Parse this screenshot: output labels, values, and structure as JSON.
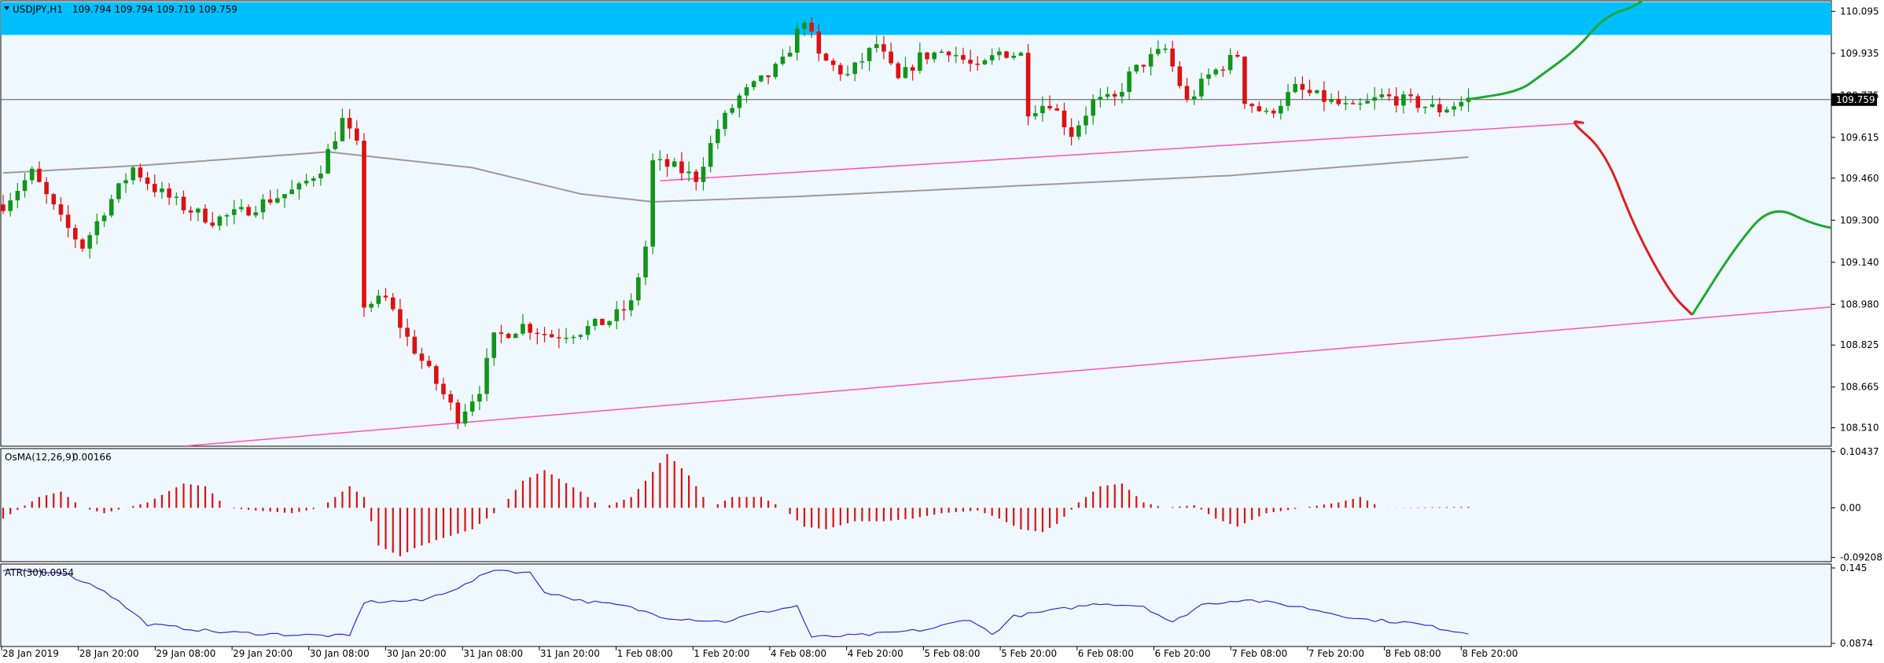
{
  "header": {
    "symbol_label": "USDJPY,H1",
    "ohlc": "109.794 109.794 109.719 109.759"
  },
  "colors": {
    "background": "#f0f8ff",
    "bull": "#109618",
    "bear": "#dd1111",
    "resistance_zone": "#00bfff",
    "trend": "#ff4fb8",
    "ma": "#9a9a9a",
    "atr": "#2b2bd6",
    "forecast_down": "#e31c1c",
    "forecast_up": "#20a830"
  },
  "chart_data": [
    {
      "type": "candlestick",
      "title": "USDJPY,H1",
      "ohlc_label": "109.794 109.794 109.719 109.759",
      "ylim": [
        108.44,
        110.135
      ],
      "y_ticks": [
        "110.095",
        "109.935",
        "109.775",
        "109.615",
        "109.460",
        "109.300",
        "109.140",
        "108.980",
        "108.825",
        "108.665",
        "108.510"
      ],
      "x_ticks": [
        "28 Jan 2019",
        "28 Jan 20:00",
        "29 Jan 08:00",
        "29 Jan 20:00",
        "30 Jan 08:00",
        "30 Jan 20:00",
        "31 Jan 08:00",
        "31 Jan 20:00",
        "1 Feb 08:00",
        "1 Feb 20:00",
        "4 Feb 08:00",
        "4 Feb 20:00",
        "5 Feb 08:00",
        "5 Feb 20:00",
        "6 Feb 08:00",
        "6 Feb 20:00",
        "7 Feb 08:00",
        "7 Feb 20:00",
        "8 Feb 08:00",
        "8 Feb 20:00"
      ],
      "current_price": "109.759",
      "resistance_zone": [
        110.005,
        110.13
      ],
      "close_anchors": [
        [
          0,
          109.36
        ],
        [
          4,
          109.48
        ],
        [
          8,
          109.3
        ],
        [
          11,
          109.2
        ],
        [
          14,
          109.34
        ],
        [
          18,
          109.5
        ],
        [
          21,
          109.42
        ],
        [
          25,
          109.35
        ],
        [
          29,
          109.3
        ],
        [
          33,
          109.33
        ],
        [
          37,
          109.38
        ],
        [
          41,
          109.42
        ],
        [
          44,
          109.5
        ],
        [
          47,
          109.68
        ],
        [
          49,
          109.58
        ],
        [
          50,
          108.98
        ],
        [
          53,
          109.0
        ],
        [
          56,
          108.85
        ],
        [
          60,
          108.68
        ],
        [
          63,
          108.55
        ],
        [
          66,
          108.66
        ],
        [
          68,
          108.85
        ],
        [
          72,
          108.9
        ],
        [
          76,
          108.86
        ],
        [
          80,
          108.88
        ],
        [
          84,
          108.92
        ],
        [
          87,
          108.98
        ],
        [
          89,
          109.2
        ],
        [
          90,
          109.52
        ],
        [
          93,
          109.5
        ],
        [
          96,
          109.46
        ],
        [
          99,
          109.65
        ],
        [
          102,
          109.77
        ],
        [
          106,
          109.85
        ],
        [
          108,
          109.9
        ],
        [
          111,
          110.07
        ],
        [
          113,
          109.92
        ],
        [
          117,
          109.85
        ],
        [
          121,
          109.97
        ],
        [
          124,
          109.83
        ],
        [
          127,
          109.92
        ],
        [
          131,
          109.95
        ],
        [
          135,
          109.87
        ],
        [
          138,
          109.94
        ],
        [
          141,
          109.93
        ],
        [
          142,
          109.72
        ],
        [
          145,
          109.75
        ],
        [
          148,
          109.63
        ],
        [
          151,
          109.75
        ],
        [
          154,
          109.76
        ],
        [
          156,
          109.85
        ],
        [
          158,
          109.9
        ],
        [
          161,
          109.95
        ],
        [
          164,
          109.75
        ],
        [
          167,
          109.85
        ],
        [
          171,
          109.93
        ],
        [
          172,
          109.76
        ],
        [
          175,
          109.7
        ],
        [
          179,
          109.8
        ],
        [
          183,
          109.76
        ],
        [
          187,
          109.72
        ],
        [
          191,
          109.77
        ],
        [
          195,
          109.75
        ],
        [
          199,
          109.72
        ],
        [
          203,
          109.76
        ]
      ],
      "moving_average": [
        [
          0,
          109.48
        ],
        [
          20,
          109.51
        ],
        [
          45,
          109.56
        ],
        [
          65,
          109.5
        ],
        [
          80,
          109.4
        ],
        [
          90,
          109.37
        ],
        [
          110,
          109.39
        ],
        [
          140,
          109.43
        ],
        [
          170,
          109.47
        ],
        [
          203,
          109.54
        ]
      ],
      "trendline_lower": [
        [
          25,
          108.44
        ],
        [
          262,
          108.99
        ]
      ],
      "trendline_upper": [
        [
          91,
          109.45
        ],
        [
          219,
          109.67
        ]
      ],
      "forecast_red": [
        [
          219,
          109.67
        ],
        [
          217,
          109.68
        ],
        [
          222,
          109.56
        ],
        [
          226,
          109.27
        ],
        [
          231,
          109.02
        ],
        [
          234,
          108.94
        ]
      ],
      "forecast_green": [
        [
          203,
          109.76
        ],
        [
          210,
          109.79
        ],
        [
          213,
          109.85
        ],
        [
          218,
          109.95
        ],
        [
          222,
          110.08
        ],
        [
          227,
          110.12
        ],
        [
          231,
          110.25
        ]
      ],
      "forecast_green_long": [
        [
          234,
          108.94
        ],
        [
          240,
          109.2
        ],
        [
          245,
          109.36
        ],
        [
          251,
          109.28
        ],
        [
          256,
          109.26
        ],
        [
          261,
          109.5
        ],
        [
          264,
          109.64
        ],
        [
          268,
          109.75
        ],
        [
          271,
          110.0
        ],
        [
          272,
          110.14
        ]
      ]
    },
    {
      "type": "bar",
      "title": "OsMA(12,26,9)",
      "value_label": "0.00166",
      "ylim": [
        -0.1,
        0.11
      ],
      "y_ticks": [
        "0.10437",
        "0.00",
        "-0.09208"
      ],
      "anchors": [
        [
          0,
          -0.02
        ],
        [
          5,
          0.02
        ],
        [
          8,
          0.03
        ],
        [
          11,
          0.0
        ],
        [
          14,
          -0.01
        ],
        [
          17,
          0.0
        ],
        [
          20,
          0.01
        ],
        [
          25,
          0.045
        ],
        [
          28,
          0.04
        ],
        [
          31,
          0.0
        ],
        [
          35,
          -0.005
        ],
        [
          40,
          -0.01
        ],
        [
          44,
          0.0
        ],
        [
          48,
          0.04
        ],
        [
          50,
          0.02
        ],
        [
          52,
          -0.07
        ],
        [
          55,
          -0.09
        ],
        [
          57,
          -0.075
        ],
        [
          60,
          -0.06
        ],
        [
          65,
          -0.04
        ],
        [
          69,
          0.0
        ],
        [
          72,
          0.05
        ],
        [
          75,
          0.07
        ],
        [
          80,
          0.03
        ],
        [
          83,
          0.0
        ],
        [
          87,
          0.02
        ],
        [
          89,
          0.05
        ],
        [
          92,
          0.1
        ],
        [
          95,
          0.06
        ],
        [
          98,
          0.0
        ],
        [
          101,
          0.02
        ],
        [
          105,
          0.02
        ],
        [
          108,
          0.0
        ],
        [
          111,
          -0.035
        ],
        [
          114,
          -0.04
        ],
        [
          118,
          -0.025
        ],
        [
          122,
          -0.025
        ],
        [
          126,
          -0.02
        ],
        [
          130,
          -0.01
        ],
        [
          135,
          -0.005
        ],
        [
          138,
          -0.02
        ],
        [
          141,
          -0.04
        ],
        [
          144,
          -0.045
        ],
        [
          146,
          -0.03
        ],
        [
          149,
          0.01
        ],
        [
          152,
          0.04
        ],
        [
          155,
          0.045
        ],
        [
          158,
          0.01
        ],
        [
          161,
          0.0
        ],
        [
          165,
          0.005
        ],
        [
          168,
          -0.02
        ],
        [
          171,
          -0.035
        ],
        [
          175,
          -0.01
        ],
        [
          180,
          0.0
        ],
        [
          185,
          0.01
        ],
        [
          188,
          0.02
        ],
        [
          191,
          0.0
        ],
        [
          203,
          0.0017
        ]
      ]
    },
    {
      "type": "line",
      "title": "ATR(30)",
      "value_label": "0.0954",
      "ylim": [
        0.085,
        0.148
      ],
      "y_ticks": [
        "0.145",
        "0.0874"
      ],
      "anchors": [
        [
          0,
          0.143
        ],
        [
          8,
          0.142
        ],
        [
          14,
          0.128
        ],
        [
          20,
          0.102
        ],
        [
          30,
          0.096
        ],
        [
          40,
          0.094
        ],
        [
          48,
          0.093
        ],
        [
          50,
          0.119
        ],
        [
          58,
          0.12
        ],
        [
          64,
          0.132
        ],
        [
          68,
          0.144
        ],
        [
          73,
          0.141
        ],
        [
          75,
          0.127
        ],
        [
          80,
          0.12
        ],
        [
          86,
          0.116
        ],
        [
          92,
          0.107
        ],
        [
          100,
          0.104
        ],
        [
          104,
          0.11
        ],
        [
          110,
          0.116
        ],
        [
          112,
          0.092
        ],
        [
          120,
          0.094
        ],
        [
          128,
          0.098
        ],
        [
          134,
          0.106
        ],
        [
          137,
          0.094
        ],
        [
          140,
          0.108
        ],
        [
          146,
          0.113
        ],
        [
          152,
          0.118
        ],
        [
          158,
          0.116
        ],
        [
          162,
          0.103
        ],
        [
          166,
          0.117
        ],
        [
          172,
          0.121
        ],
        [
          180,
          0.115
        ],
        [
          188,
          0.106
        ],
        [
          195,
          0.103
        ],
        [
          203,
          0.095
        ]
      ]
    }
  ]
}
